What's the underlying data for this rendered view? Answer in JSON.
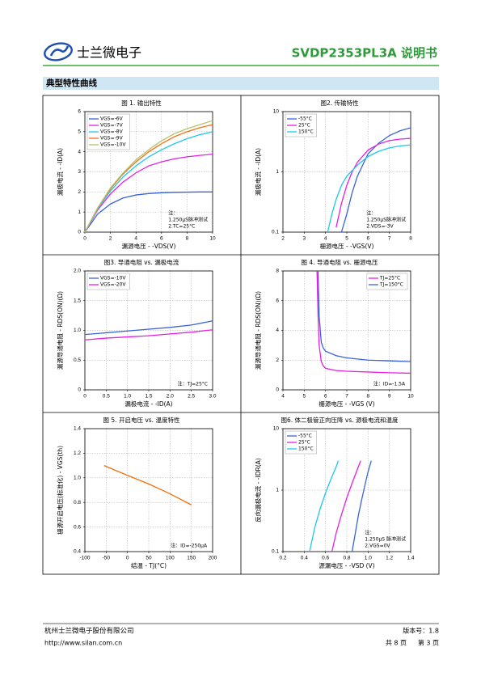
{
  "header": {
    "company": "士兰微电子",
    "title": "SVDP2353PL3A 说明书"
  },
  "section_title": "典型特性曲线",
  "chart_data": [
    {
      "type": "line",
      "title": "图 1. 输出特性",
      "x_label": "漏源电压 - -VDS(V)",
      "y_label": "漏极电流 - -ID(A)",
      "x": [
        0,
        1,
        2,
        3,
        4,
        5,
        6,
        7,
        8,
        9,
        10
      ],
      "series": [
        {
          "name": "VGS=-6V",
          "color": "#3a63d8",
          "values": [
            0,
            0.9,
            1.4,
            1.7,
            1.85,
            1.92,
            1.96,
            1.98,
            1.99,
            2.0,
            2.0
          ]
        },
        {
          "name": "VGS=-7V",
          "color": "#e61ee6",
          "values": [
            0,
            1.1,
            1.9,
            2.5,
            2.95,
            3.3,
            3.5,
            3.65,
            3.75,
            3.82,
            3.88
          ]
        },
        {
          "name": "VGS=-8V",
          "color": "#1ec8e8",
          "values": [
            0,
            1.15,
            2.05,
            2.75,
            3.3,
            3.75,
            4.1,
            4.4,
            4.65,
            4.85,
            5.0
          ]
        },
        {
          "name": "VGS=-9V",
          "color": "#f07010",
          "values": [
            0,
            1.2,
            2.15,
            2.9,
            3.5,
            4.0,
            4.4,
            4.75,
            5.0,
            5.2,
            5.35
          ]
        },
        {
          "name": "VGS=-10V",
          "color": "#b4c46a",
          "values": [
            0,
            1.2,
            2.2,
            2.95,
            3.6,
            4.1,
            4.55,
            4.9,
            5.15,
            5.35,
            5.55
          ]
        }
      ],
      "xlim": [
        0,
        10
      ],
      "ylim": [
        0,
        6
      ],
      "xticks": [
        0,
        2,
        4,
        6,
        8,
        10
      ],
      "yticks": [
        0,
        1,
        2,
        3,
        4,
        5,
        6
      ],
      "grid": true,
      "log_y": false,
      "legend": "upper left",
      "annotation": [
        "注：",
        "1.250μS脉冲测试",
        "2.TC=25°C"
      ]
    },
    {
      "type": "line",
      "title": "图2. 传输特性",
      "x_label": "栅源电压 - -VGS(V)",
      "y_label": "漏极电流 - -ID(A)",
      "x": [
        4.1,
        4.3,
        4.5,
        4.75,
        5,
        5.25,
        5.5,
        6,
        6.5,
        7,
        7.5,
        8
      ],
      "series": [
        {
          "name": "-55°C",
          "color": "#3a63d8",
          "values": [
            null,
            null,
            null,
            0.1,
            0.2,
            0.45,
            0.85,
            2.0,
            3.0,
            4.0,
            4.8,
            5.4
          ]
        },
        {
          "name": "25°C",
          "color": "#e61ee6",
          "values": [
            null,
            null,
            0.12,
            0.3,
            0.6,
            1.0,
            1.45,
            2.3,
            2.9,
            3.3,
            3.5,
            3.6
          ]
        },
        {
          "name": "150°C",
          "color": "#1ec8e8",
          "values": [
            0.1,
            0.2,
            0.35,
            0.6,
            0.85,
            1.05,
            1.3,
            1.8,
            2.2,
            2.5,
            2.7,
            2.8
          ]
        }
      ],
      "xlim": [
        2,
        8
      ],
      "ylim": [
        0.1,
        10
      ],
      "xticks": [
        2,
        3,
        4,
        5,
        6,
        7,
        8
      ],
      "yticks": [
        0.1,
        1,
        10
      ],
      "grid": true,
      "log_y": true,
      "legend": "upper left",
      "annotation": [
        "注：",
        "1.250μS脉冲测试",
        "2.VDS=-3V"
      ]
    },
    {
      "type": "line",
      "title": "图3. 导通电阻 vs. 漏极电流",
      "x_label": "漏极电流 - -ID(A)",
      "y_label": "漏源导通电阻 - RDS(ON)(Ω)",
      "x": [
        0,
        0.5,
        1,
        1.5,
        2,
        2.5,
        3
      ],
      "series": [
        {
          "name": "VGS=-10V",
          "color": "#3a63d8",
          "values": [
            0.93,
            0.96,
            0.99,
            1.02,
            1.05,
            1.09,
            1.16
          ]
        },
        {
          "name": "VGS=-20V",
          "color": "#e61ee6",
          "values": [
            0.84,
            0.87,
            0.89,
            0.91,
            0.94,
            0.97,
            1.01
          ]
        }
      ],
      "xlim": [
        0,
        3
      ],
      "ylim": [
        0,
        2
      ],
      "xticks": [
        0,
        0.5,
        {
          "value": 1,
          "label": "1.0"
        },
        1.5,
        {
          "value": 2,
          "label": "2.0"
        },
        2.5,
        {
          "value": 3,
          "label": "3.0"
        }
      ],
      "yticks": [
        0,
        0.5,
        {
          "value": 1,
          "label": "1.0"
        },
        1.5,
        {
          "value": 2,
          "label": "2.0"
        }
      ],
      "grid": true,
      "log_y": false,
      "legend": "upper left",
      "annotation": [
        "注：TJ=25°C"
      ]
    },
    {
      "type": "line",
      "title": "图 4. 导通电阻 vs. 栅源电压",
      "x_label": "栅源电压 - -VGS (V)",
      "y_label": "漏源导通电阻 - RDS(ON)(Ω)",
      "x": [
        5.6,
        5.65,
        5.7,
        5.8,
        5.9,
        6,
        6.5,
        7,
        8,
        9,
        10
      ],
      "series": [
        {
          "name": "TJ=25°C",
          "color": "#e61ee6",
          "values": [
            8,
            5,
            3,
            1.9,
            1.6,
            1.45,
            1.3,
            1.25,
            1.2,
            1.15,
            1.12
          ]
        },
        {
          "name": "TJ=150°C",
          "color": "#3a63d8",
          "values": [
            null,
            8,
            5,
            3.2,
            2.8,
            2.6,
            2.3,
            2.15,
            2.0,
            1.95,
            1.9
          ]
        }
      ],
      "xlim": [
        4,
        10
      ],
      "ylim": [
        0,
        8
      ],
      "xticks": [
        4,
        5,
        6,
        7,
        8,
        9,
        10
      ],
      "yticks": [
        0,
        2,
        4,
        6,
        8
      ],
      "grid": true,
      "log_y": false,
      "legend": "upper right",
      "annotation": [
        "注：ID=-1.5A"
      ]
    },
    {
      "type": "line",
      "title": "图 5. 开启电压 vs. 温度特性",
      "x_label": "结温 - TJ(°C)",
      "y_label": "栅源开启电压(标准化) - VGS(th)",
      "x": [
        -55,
        0,
        50,
        100,
        150
      ],
      "series": [
        {
          "color": "#f07010",
          "values": [
            1.1,
            1.02,
            0.95,
            0.87,
            0.78
          ]
        }
      ],
      "xlim": [
        -100,
        200
      ],
      "ylim": [
        0.4,
        1.4
      ],
      "xticks": [
        -100,
        -50,
        0,
        50,
        100,
        150,
        200
      ],
      "yticks": [
        0.4,
        0.6,
        0.8,
        {
          "value": 1,
          "label": "1.0"
        },
        1.2,
        1.4
      ],
      "grid": true,
      "log_y": false,
      "annotation": [
        "注：ID=-250μA"
      ]
    },
    {
      "type": "line",
      "title": "图6. 体二极管正向压降 vs. 源极电流和温度",
      "x_label": "源漏电压 - -VSD (V)",
      "y_label": "反向漏极电流 - -IDR(A)",
      "series": [
        {
          "name": "-55°C",
          "color": "#3a63d8",
          "x": [
            0.85,
            0.88,
            0.91,
            0.94,
            0.97,
            1.0,
            1.03
          ],
          "values": [
            0.1,
            0.2,
            0.4,
            0.7,
            1.2,
            2.0,
            3
          ]
        },
        {
          "name": "25°C",
          "color": "#e61ee6",
          "x": [
            0.66,
            0.7,
            0.75,
            0.8,
            0.85,
            0.9,
            0.93
          ],
          "values": [
            0.1,
            0.2,
            0.4,
            0.75,
            1.3,
            2.2,
            3
          ]
        },
        {
          "name": "150°C",
          "color": "#1ec8e8",
          "x": [
            0.45,
            0.5,
            0.55,
            0.6,
            0.65,
            0.7,
            0.72
          ],
          "values": [
            0.1,
            0.25,
            0.5,
            0.9,
            1.5,
            2.4,
            3
          ]
        }
      ],
      "xlim": [
        0.2,
        1.4
      ],
      "ylim": [
        0.1,
        10
      ],
      "xticks": [
        0.2,
        0.4,
        0.6,
        0.8,
        {
          "value": 1,
          "label": "1.0"
        },
        1.2,
        1.4
      ],
      "yticks": [
        0.1,
        1,
        10
      ],
      "grid": true,
      "log_y": true,
      "legend": "upper left",
      "annotation": [
        "注：",
        "1.250μS 脉冲测试",
        "2.VGS=0V"
      ]
    }
  ],
  "footer": {
    "company": "杭州士兰微电子股份有限公司",
    "url": "http://www.silan.com.cn",
    "version": "版本号：1.8",
    "total_pages": "共 8 页",
    "page": "第 3 页"
  }
}
